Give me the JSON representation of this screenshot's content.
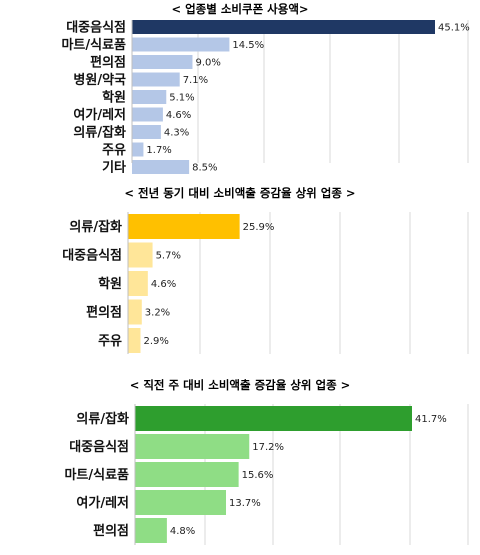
{
  "chart_data": [
    {
      "type": "bar",
      "orientation": "horizontal",
      "title": "< 업종별 소비쿠폰 사용액>",
      "categories": [
        "대중음식점",
        "마트/식료품",
        "편의점",
        "병원/약국",
        "학원",
        "여가/레저",
        "의류/잡화",
        "주유",
        "기타"
      ],
      "values": [
        45.1,
        14.5,
        9.0,
        7.1,
        5.1,
        4.6,
        4.3,
        1.7,
        8.5
      ],
      "value_labels": [
        "45.1%",
        "14.5%",
        "9.0%",
        "7.1%",
        "5.1%",
        "4.6%",
        "4.3%",
        "1.7%",
        "8.5%"
      ],
      "unit": "%",
      "xlim": [
        0,
        45.1
      ],
      "grid": true,
      "highlight_color": "#1f3864",
      "bar_color": "#b4c7e7"
    },
    {
      "type": "bar",
      "orientation": "horizontal",
      "title": "< 전년 동기 대비 소비액출 증감율 상위 업종 >",
      "categories": [
        "의류/잡화",
        "대중음식점",
        "학원",
        "편의점",
        "주유"
      ],
      "values": [
        25.9,
        5.7,
        4.6,
        3.2,
        2.9
      ],
      "value_labels": [
        "25.9%",
        "5.7%",
        "4.6%",
        "3.2%",
        "2.9%"
      ],
      "unit": "%",
      "xlim": [
        0,
        41.3
      ],
      "grid": true,
      "highlight_color": "#ffc000",
      "bar_color": "#ffe699"
    },
    {
      "type": "bar",
      "orientation": "horizontal",
      "title": "< 직전 주 대비 소비액출 증감율 상위 업종 >",
      "categories": [
        "의류/잡화",
        "대중음식점",
        "마트/식료품",
        "여가/레저",
        "편의점"
      ],
      "values": [
        41.7,
        17.2,
        15.6,
        13.7,
        4.8
      ],
      "value_labels": [
        "41.7%",
        "17.2%",
        "15.6%",
        "13.7%",
        "4.8%"
      ],
      "unit": "%",
      "xlim": [
        0,
        41.7
      ],
      "grid": true,
      "highlight_color": "#2e9e2e",
      "bar_color": "#8fdd85"
    }
  ]
}
